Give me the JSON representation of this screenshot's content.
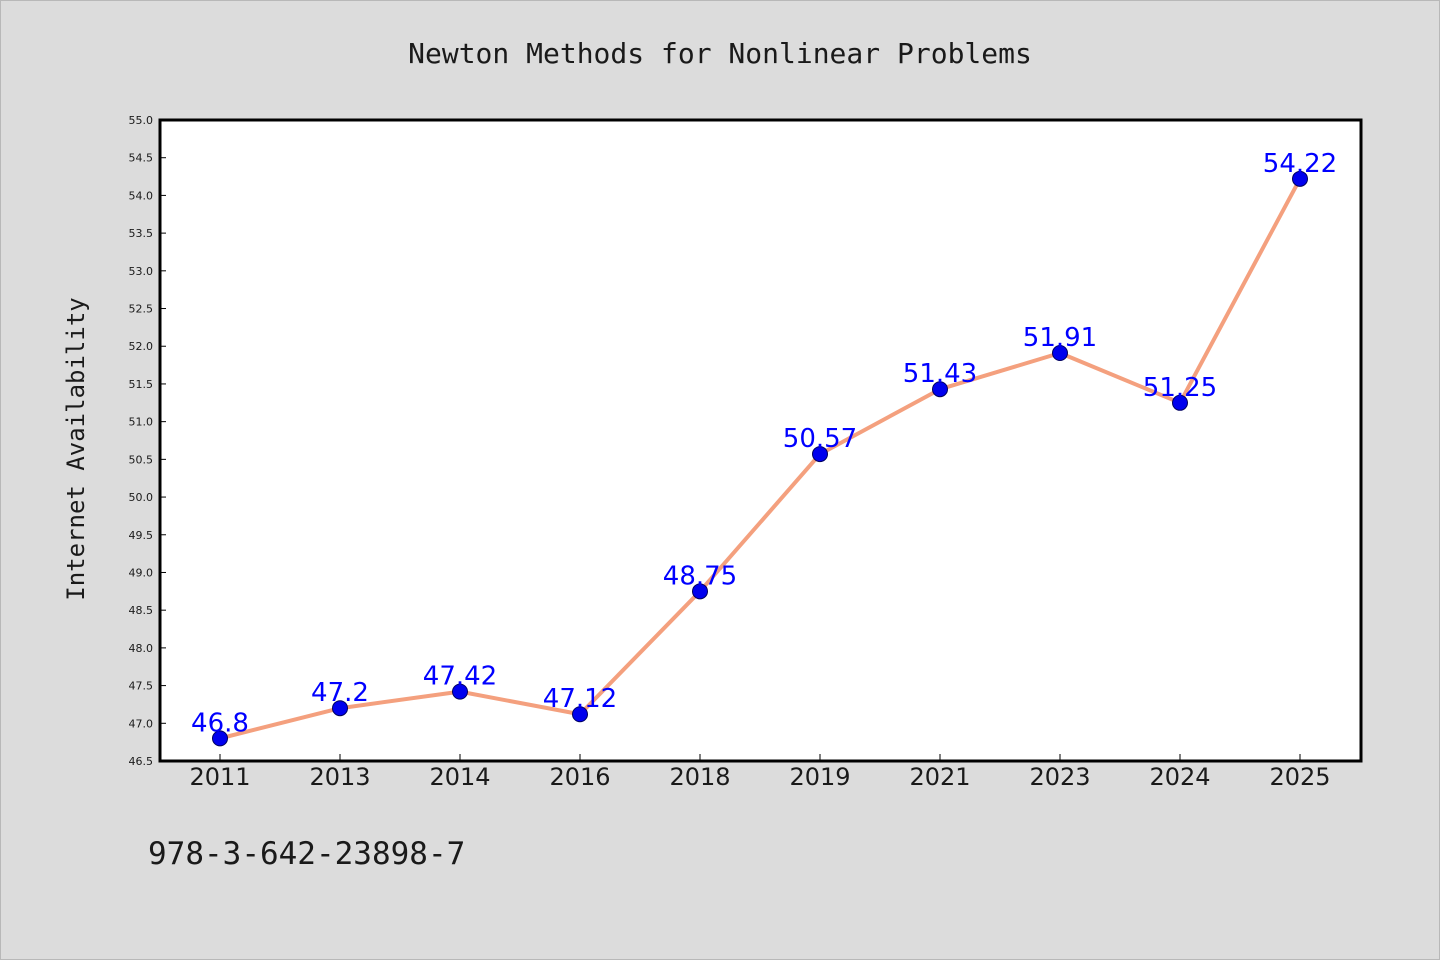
{
  "chart_data": {
    "type": "line",
    "title": "Newton Methods for Nonlinear Problems",
    "xlabel": "",
    "ylabel": "Internet Availability",
    "categories": [
      "2011",
      "2013",
      "2014",
      "2016",
      "2018",
      "2019",
      "2021",
      "2023",
      "2024",
      "2025"
    ],
    "series": [
      {
        "values": [
          46.8,
          47.2,
          47.42,
          47.12,
          48.75,
          50.57,
          51.43,
          51.91,
          51.25,
          54.22
        ],
        "data_labels": [
          "46.8",
          "47.2",
          "47.42",
          "47.12",
          "48.75",
          "50.57",
          "51.43",
          "51.91",
          "51.25",
          "54.22"
        ]
      }
    ],
    "ylim": [
      46.5,
      55.0
    ],
    "yticks": [
      "46.5",
      "47.0",
      "47.5",
      "48.0",
      "48.5",
      "49.0",
      "49.5",
      "50.0",
      "50.5",
      "51.0",
      "51.5",
      "52.0",
      "52.5",
      "53.0",
      "53.5",
      "54.0",
      "54.5",
      "55.0"
    ],
    "grid": false,
    "legend": "none",
    "colors": {
      "line": "#f4a07e",
      "marker": "#0000ee",
      "marker_edge": "#000060",
      "data_label": "#0000ff",
      "plot_background": "#ffffff",
      "figure_background": "#dcdcdc"
    }
  },
  "footer": {
    "isbn": "978-3-642-23898-7"
  }
}
